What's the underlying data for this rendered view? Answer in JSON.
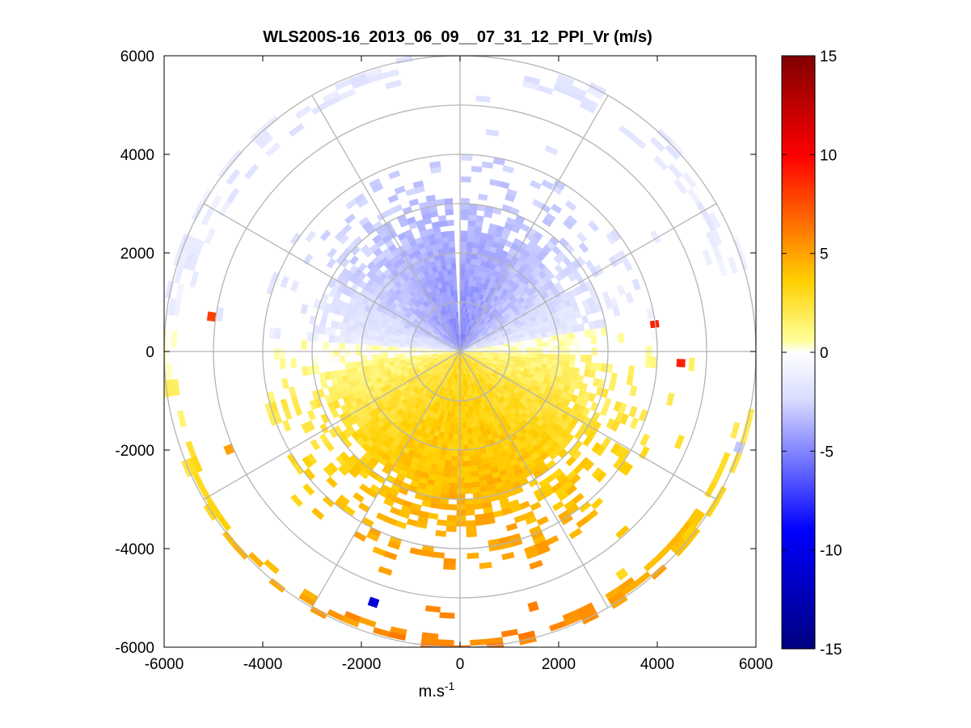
{
  "chart_data": {
    "type": "polar-ppi",
    "title": "WLS200S-16_2013_06_09__07_31_12_PPI_Vr (m/s)",
    "xlabel_base": "m.s",
    "xlabel_sup": "-1",
    "ylabel": "",
    "xlim": [
      -6000,
      6000
    ],
    "ylim": [
      -6000,
      6000
    ],
    "x_ticks": [
      "-6000",
      "-4000",
      "-2000",
      "0",
      "2000",
      "4000",
      "6000"
    ],
    "y_ticks": [
      "6000",
      "4000",
      "2000",
      "0",
      "-2000",
      "-4000",
      "-6000"
    ],
    "grid": true,
    "range_rings_m": [
      1000,
      2000,
      3000,
      4000,
      5000,
      6000
    ],
    "spoke_angles_deg": [
      0,
      30,
      60,
      90,
      120,
      150,
      180,
      210,
      240,
      270,
      300,
      330
    ],
    "colorbar": {
      "min": -15,
      "max": 15,
      "ticks": [
        "15",
        "10",
        "5",
        "0",
        "-5",
        "-10",
        "-15"
      ],
      "colors": [
        "#000080",
        "#0000ff",
        "#d8dcff",
        "#ffffff",
        "#ffff99",
        "#ffd000",
        "#ff8000",
        "#ff0000",
        "#800000"
      ]
    },
    "description_fields": {
      "northern_half_mean_vr": -2,
      "southern_half_mean_vr": 3,
      "max_range_m": 6000
    }
  }
}
